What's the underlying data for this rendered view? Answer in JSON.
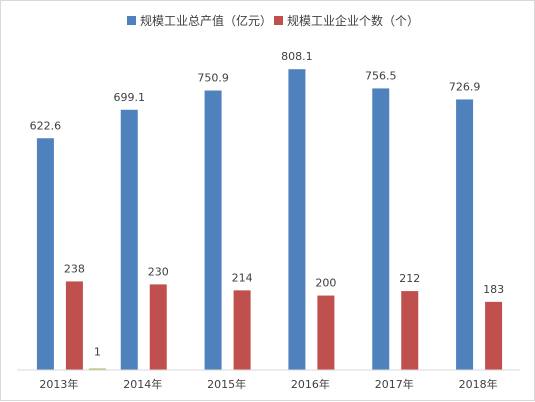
{
  "chart_data": {
    "type": "bar",
    "categories": [
      "2013年",
      "2014年",
      "2015年",
      "2016年",
      "2017年",
      "2018年"
    ],
    "series": [
      {
        "name": "规模工业总产值（亿元）",
        "color": "#4f81bd",
        "values": [
          622.6,
          699.1,
          750.9,
          808.1,
          756.5,
          726.9
        ],
        "labels": [
          "622.6",
          "699.1",
          "750.9",
          "808.1",
          "756.5",
          "726.9"
        ]
      },
      {
        "name": "规模工业企业个数（个）",
        "color": "#c0504d",
        "values": [
          238,
          230,
          214,
          200,
          212,
          183
        ],
        "labels": [
          "238",
          "230",
          "214",
          "200",
          "212",
          "183"
        ]
      }
    ],
    "extra_marks": [
      {
        "category": "2013年",
        "value": 1,
        "label": "1",
        "color": "#9bbb59"
      }
    ],
    "ylim": [
      0,
      900
    ],
    "grid": false,
    "legend": "top-center"
  }
}
